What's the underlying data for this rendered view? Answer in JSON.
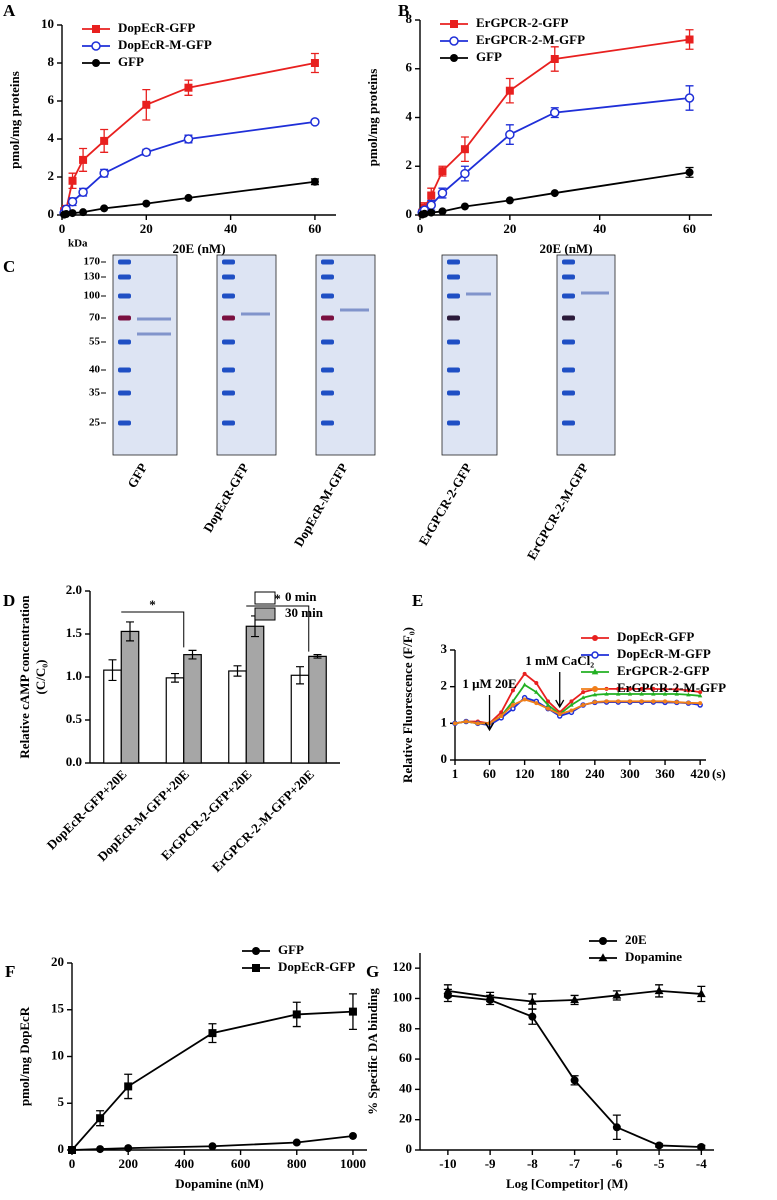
{
  "chart_data": [
    {
      "panel": "A",
      "type": "line",
      "xlabel": "20E (nM)",
      "ylabel": "pmol/mg proteins",
      "x": [
        0.5,
        1,
        2.5,
        5,
        10,
        20,
        30,
        60
      ],
      "xlim": [
        0,
        65
      ],
      "xticks": [
        0,
        20,
        40,
        60
      ],
      "ylim": [
        0,
        10
      ],
      "yticks": [
        0,
        2,
        4,
        6,
        8,
        10
      ],
      "legend": "upper left",
      "series": [
        {
          "name": "DopEcR-GFP",
          "color": "#e8201f",
          "marker": "square",
          "values": [
            0.2,
            0.3,
            1.8,
            2.9,
            3.9,
            5.8,
            6.7,
            8.0
          ],
          "errors": [
            0.1,
            0.2,
            0.4,
            0.6,
            0.6,
            0.8,
            0.4,
            0.5
          ]
        },
        {
          "name": "DopEcR-M-GFP",
          "color": "#1f2fd8",
          "marker": "circle-open",
          "values": [
            0.1,
            0.3,
            0.7,
            1.2,
            2.2,
            3.3,
            4.0,
            4.9
          ],
          "errors": [
            0.1,
            0.1,
            0.2,
            0.2,
            0.2,
            0.15,
            0.2,
            0.1
          ]
        },
        {
          "name": "GFP",
          "color": "#000000",
          "marker": "circle",
          "values": [
            0.02,
            0.05,
            0.1,
            0.15,
            0.35,
            0.6,
            0.9,
            1.75
          ],
          "errors": [
            0,
            0,
            0,
            0,
            0,
            0,
            0,
            0.15
          ]
        }
      ]
    },
    {
      "panel": "B",
      "type": "line",
      "xlabel": "20E (nM)",
      "ylabel": "pmol/mg proteins",
      "x": [
        0.5,
        1,
        2.5,
        5,
        10,
        20,
        30,
        60
      ],
      "xlim": [
        0,
        65
      ],
      "xticks": [
        0,
        20,
        40,
        60
      ],
      "ylim": [
        0,
        8
      ],
      "yticks": [
        0,
        2,
        4,
        6,
        8
      ],
      "legend": "upper left",
      "series": [
        {
          "name": "ErGPCR-2-GFP",
          "color": "#e8201f",
          "marker": "square",
          "values": [
            0.1,
            0.3,
            0.8,
            1.8,
            2.7,
            5.1,
            6.4,
            7.2
          ],
          "errors": [
            0.1,
            0.2,
            0.3,
            0.2,
            0.5,
            0.5,
            0.5,
            0.4
          ]
        },
        {
          "name": "ErGPCR-2-M-GFP",
          "color": "#1f2fd8",
          "marker": "circle-open",
          "values": [
            0.1,
            0.2,
            0.4,
            0.9,
            1.7,
            3.3,
            4.2,
            4.8
          ],
          "errors": [
            0.1,
            0.1,
            0.2,
            0.2,
            0.3,
            0.4,
            0.2,
            0.5
          ]
        },
        {
          "name": "GFP",
          "color": "#000000",
          "marker": "circle",
          "values": [
            0.02,
            0.05,
            0.1,
            0.15,
            0.35,
            0.6,
            0.9,
            1.75
          ],
          "errors": [
            0,
            0,
            0,
            0,
            0,
            0,
            0,
            0.2
          ]
        }
      ]
    },
    {
      "panel": "D",
      "type": "bar",
      "ylabel": "Relative cAMP concentration",
      "ylabel2": "(C/C₀)",
      "categories": [
        "DopEcR-GFP+20E",
        "DopEcR-M-GFP+20E",
        "ErGPCR-2-GFP+20E",
        "ErGPCR-2-M-GFP+20E"
      ],
      "ylim": [
        0,
        2
      ],
      "yticks": [
        {
          "value": 0,
          "label": "0.0"
        },
        0.5,
        {
          "value": 1,
          "label": "1.0"
        },
        1.5,
        {
          "value": 2,
          "label": "2.0"
        }
      ],
      "legend": "upper right",
      "annotations": [
        "*",
        "*"
      ],
      "series": [
        {
          "name": "0 min",
          "color": "#ffffff",
          "values": [
            1.08,
            0.99,
            1.07,
            1.02
          ],
          "errors": [
            0.12,
            0.05,
            0.06,
            0.1
          ]
        },
        {
          "name": "30 min",
          "color": "#a6a6a6",
          "values": [
            1.53,
            1.26,
            1.59,
            1.24
          ],
          "errors": [
            0.11,
            0.05,
            0.12,
            0.02
          ]
        }
      ]
    },
    {
      "panel": "E",
      "type": "line",
      "xlabel": "(s)",
      "xlabel_loc": "right",
      "ylabel": "Relative Fluorescence (F/F₀)",
      "x": [
        1,
        20,
        40,
        60,
        80,
        100,
        120,
        140,
        160,
        180,
        200,
        220,
        240,
        260,
        280,
        300,
        320,
        340,
        360,
        380,
        400,
        420
      ],
      "xlim": [
        1,
        430
      ],
      "xticks": [
        1,
        60,
        120,
        180,
        240,
        300,
        360,
        420
      ],
      "ylim": [
        0,
        3
      ],
      "yticks": [
        0,
        1,
        2,
        3
      ],
      "legend": "upper right",
      "annotations": [
        {
          "text": "1 μM 20E",
          "x": 60
        },
        {
          "text": "1 mM CaCl₂",
          "x": 180
        }
      ],
      "series": [
        {
          "name": "DopEcR-GFP",
          "color": "#e8201f",
          "marker": "circle",
          "values": [
            1.0,
            1.05,
            1.05,
            1.0,
            1.3,
            1.9,
            2.35,
            2.1,
            1.6,
            1.3,
            1.6,
            1.85,
            1.93,
            1.94,
            1.94,
            1.94,
            1.94,
            1.94,
            1.93,
            1.93,
            1.9,
            1.85
          ]
        },
        {
          "name": "DopEcR-M-GFP",
          "color": "#1f2fd8",
          "marker": "circle-open",
          "values": [
            1.0,
            1.05,
            1.0,
            0.95,
            1.15,
            1.4,
            1.7,
            1.6,
            1.4,
            1.2,
            1.3,
            1.5,
            1.57,
            1.58,
            1.58,
            1.58,
            1.58,
            1.58,
            1.57,
            1.57,
            1.55,
            1.5
          ]
        },
        {
          "name": "ErGPCR-2-GFP",
          "color": "#22b022",
          "marker": "triangle",
          "values": [
            1.0,
            1.05,
            1.0,
            1.0,
            1.2,
            1.6,
            2.05,
            1.85,
            1.5,
            1.25,
            1.5,
            1.7,
            1.78,
            1.8,
            1.8,
            1.8,
            1.8,
            1.8,
            1.8,
            1.8,
            1.78,
            1.75
          ]
        },
        {
          "name": "ErGPCR-2-M-GFP",
          "color": "#f07f1a",
          "marker": "circle",
          "values": [
            1.0,
            1.05,
            1.0,
            1.0,
            1.2,
            1.5,
            1.65,
            1.55,
            1.4,
            1.25,
            1.35,
            1.5,
            1.58,
            1.6,
            1.6,
            1.6,
            1.6,
            1.6,
            1.6,
            1.58,
            1.56,
            1.55
          ]
        }
      ]
    },
    {
      "panel": "F",
      "type": "line",
      "xlabel": "Dopamine (nM)",
      "ylabel": "pmol/mg DopEcR",
      "x": [
        0,
        100,
        200,
        500,
        800,
        1000
      ],
      "xlim": [
        0,
        1050
      ],
      "xticks": [
        0,
        200,
        400,
        600,
        800,
        1000
      ],
      "ylim": [
        0,
        20
      ],
      "yticks": [
        0,
        5,
        10,
        15,
        20
      ],
      "legend": "upper right",
      "series": [
        {
          "name": "GFP",
          "color": "#000000",
          "marker": "circle",
          "values": [
            0,
            0.1,
            0.2,
            0.4,
            0.8,
            1.5
          ]
        },
        {
          "name": "DopEcR-GFP",
          "color": "#000000",
          "marker": "square",
          "values": [
            0,
            3.4,
            6.8,
            12.5,
            14.5,
            14.8
          ],
          "errors": [
            0,
            0.8,
            1.3,
            1.0,
            1.3,
            1.9
          ]
        }
      ]
    },
    {
      "panel": "G",
      "type": "line",
      "xlabel": "Log [Competitor] (M)",
      "ylabel": "% Specific DA binding",
      "x": [
        -10,
        -9,
        -8,
        -7,
        -6,
        -5,
        -4
      ],
      "xlim": [
        -10.66,
        -3.7
      ],
      "xticks": [
        -10,
        -9,
        -8,
        -7,
        -6,
        -5,
        -4
      ],
      "ylim": [
        0,
        130
      ],
      "yticks": [
        0,
        20,
        40,
        60,
        80,
        100,
        120
      ],
      "legend": "upper right",
      "series": [
        {
          "name": "20E",
          "color": "#000000",
          "marker": "circle",
          "values": [
            102,
            99,
            88,
            46,
            15,
            3,
            2
          ],
          "errors": [
            4,
            3,
            5,
            3,
            8,
            1,
            1
          ]
        },
        {
          "name": "Dopamine",
          "color": "#000000",
          "marker": "triangle",
          "values": [
            105,
            101,
            98,
            99,
            102,
            105,
            103
          ],
          "errors": [
            4,
            3,
            5,
            3,
            3,
            4,
            5
          ]
        }
      ]
    }
  ],
  "gel": {
    "panel": "C",
    "unit": "kDa",
    "markers": [
      170,
      130,
      100,
      70,
      55,
      40,
      35,
      25
    ],
    "lanes": [
      "GFP",
      "DopEcR-GFP",
      "DopEcR-M-GFP",
      "ErGPCR-2-GFP",
      "ErGPCR-2-M-GFP"
    ]
  }
}
